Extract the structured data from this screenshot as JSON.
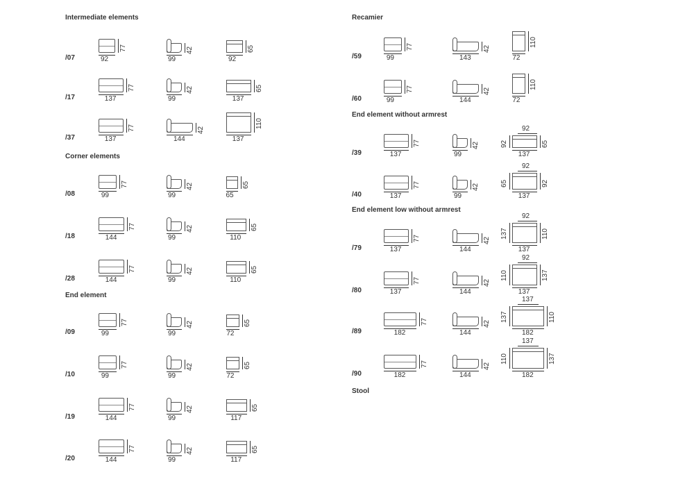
{
  "sections": [
    {
      "title": "Intermediate elements",
      "rows": [
        {
          "code": "/07",
          "front": {
            "w": "92",
            "h": "77"
          },
          "side": {
            "w": "99",
            "h": "42"
          },
          "top": {
            "bottom": "92",
            "right": "65"
          }
        },
        {
          "code": "/17",
          "front": {
            "w": "137",
            "h": "77"
          },
          "side": {
            "w": "99",
            "h": "42"
          },
          "top": {
            "bottom": "137",
            "right": "65"
          }
        },
        {
          "code": "/37",
          "front": {
            "w": "137",
            "h": "77"
          },
          "side": {
            "w": "144",
            "h": "42"
          },
          "top": {
            "bottom": "137",
            "right": "110"
          }
        }
      ]
    },
    {
      "title": "Corner elements",
      "rows": [
        {
          "code": "/08",
          "front": {
            "w": "99",
            "h": "77"
          },
          "side": {
            "w": "99",
            "h": "42"
          },
          "top": {
            "bottom": "65",
            "right": "65"
          }
        },
        {
          "code": "/18",
          "front": {
            "w": "144",
            "h": "77"
          },
          "side": {
            "w": "99",
            "h": "42"
          },
          "top": {
            "bottom": "110",
            "right": "65"
          }
        },
        {
          "code": "/28",
          "front": {
            "w": "144",
            "h": "77"
          },
          "side": {
            "w": "99",
            "h": "42"
          },
          "top": {
            "bottom": "110",
            "right": "65"
          }
        }
      ]
    },
    {
      "title": "End element",
      "rows": [
        {
          "code": "/09",
          "front": {
            "w": "99",
            "h": "77"
          },
          "side": {
            "w": "99",
            "h": "42"
          },
          "top": {
            "bottom": "72",
            "right": "65"
          }
        },
        {
          "code": "/10",
          "front": {
            "w": "99",
            "h": "77"
          },
          "side": {
            "w": "99",
            "h": "42"
          },
          "top": {
            "bottom": "72",
            "right": "65"
          }
        },
        {
          "code": "/19",
          "front": {
            "w": "144",
            "h": "77"
          },
          "side": {
            "w": "99",
            "h": "42"
          },
          "top": {
            "bottom": "117",
            "right": "65"
          }
        },
        {
          "code": "/20",
          "front": {
            "w": "144",
            "h": "77"
          },
          "side": {
            "w": "99",
            "h": "42"
          },
          "top": {
            "bottom": "117",
            "right": "65"
          }
        }
      ]
    },
    {
      "title": "Recamier",
      "rows": [
        {
          "code": "/59",
          "front": {
            "w": "99",
            "h": "77"
          },
          "side": {
            "w": "143",
            "h": "42"
          },
          "top": {
            "bottom": "72",
            "right": "110"
          }
        },
        {
          "code": "/60",
          "front": {
            "w": "99",
            "h": "77"
          },
          "side": {
            "w": "144",
            "h": "42"
          },
          "top": {
            "bottom": "72",
            "right": "110"
          }
        }
      ]
    },
    {
      "title": "End element without armrest",
      "rows": [
        {
          "code": "/39",
          "front": {
            "w": "137",
            "h": "77"
          },
          "side": {
            "w": "99",
            "h": "42"
          },
          "top": {
            "top": "92",
            "left": "92",
            "right": "65",
            "bottom": "137"
          }
        },
        {
          "code": "/40",
          "front": {
            "w": "137",
            "h": "77"
          },
          "side": {
            "w": "99",
            "h": "42"
          },
          "top": {
            "top": "92",
            "left": "65",
            "right": "92",
            "bottom": "137"
          }
        }
      ]
    },
    {
      "title": "End element low without armrest",
      "rows": [
        {
          "code": "/79",
          "front": {
            "w": "137",
            "h": "77"
          },
          "side": {
            "w": "144",
            "h": "42"
          },
          "top": {
            "top": "92",
            "left": "137",
            "right": "110",
            "bottom": "137"
          }
        },
        {
          "code": "/80",
          "front": {
            "w": "137",
            "h": "77"
          },
          "side": {
            "w": "144",
            "h": "42"
          },
          "top": {
            "top": "92",
            "left": "110",
            "right": "137",
            "bottom": "137"
          }
        },
        {
          "code": "/89",
          "front": {
            "w": "182",
            "h": "77"
          },
          "side": {
            "w": "144",
            "h": "42"
          },
          "top": {
            "top": "137",
            "left": "137",
            "right": "110",
            "bottom": "182"
          }
        },
        {
          "code": "/90",
          "front": {
            "w": "182",
            "h": "77"
          },
          "side": {
            "w": "144",
            "h": "42"
          },
          "top": {
            "top": "137",
            "left": "110",
            "right": "137",
            "bottom": "182"
          }
        }
      ]
    },
    {
      "title": "Stool",
      "rows": []
    }
  ]
}
